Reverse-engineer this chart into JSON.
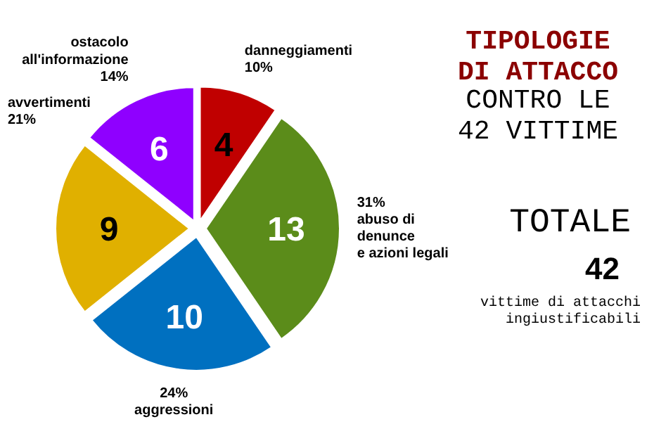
{
  "chart_data": {
    "type": "pie",
    "title": "TIPOLOGIE\nDI ATTACCO",
    "subtitle": "CONTRO LE\n42 VITTIME",
    "categories": [
      "danneggiamenti\n10%",
      "31%\nabuso di\ndenunce\ne azioni legali",
      "24%\naggressioni",
      "avvertimenti\n21%",
      "ostacolo\nall'informazione\n14%"
    ],
    "values": [
      4,
      13,
      10,
      9,
      6
    ],
    "colors": [
      "#c00000",
      "#5b8c1a",
      "#0070c0",
      "#e0b000",
      "#8f00ff"
    ],
    "data_labels": true,
    "annotations": [
      "TOTALE",
      "42",
      "vittime di attacchi\ningiustificabili"
    ]
  }
}
